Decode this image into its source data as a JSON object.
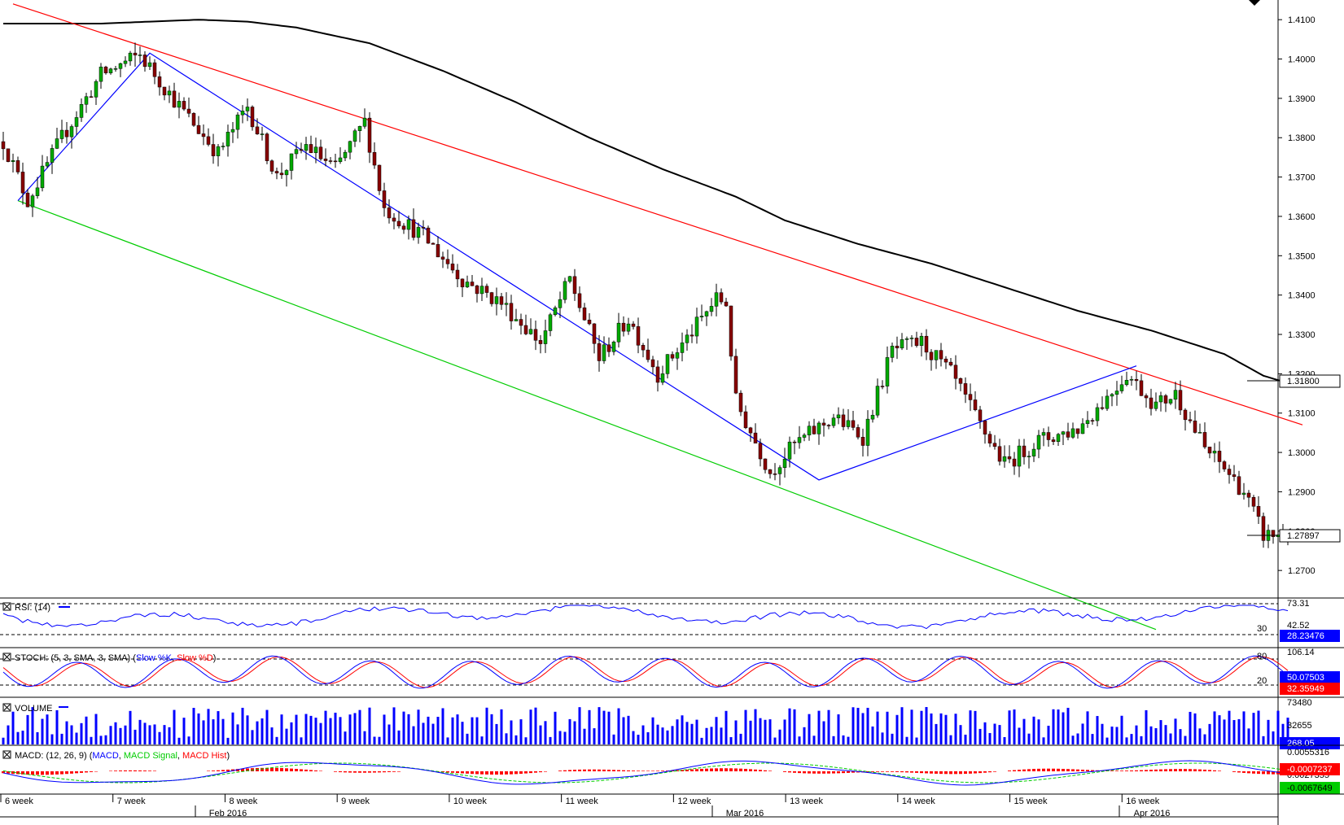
{
  "chart_data": {
    "type": "candlestick",
    "price_axis": {
      "ticks": [
        "1.4100",
        "1.4000",
        "1.3900",
        "1.3800",
        "1.3700",
        "1.3600",
        "1.3500",
        "1.3400",
        "1.3300",
        "1.3200",
        "1.3100",
        "1.3000",
        "1.2900",
        "1.2800",
        "1.2700"
      ],
      "ylim": [
        1.263,
        1.415
      ],
      "current_price_label": "1.27897",
      "current_price": 1.27897,
      "ma_label": "1.31800",
      "ma_value": 1.318
    },
    "time_axis": {
      "week_labels": [
        "6 week",
        "7 week",
        "8 week",
        "9 week",
        "10 week",
        "11 week",
        "12 week",
        "13 week",
        "14 week",
        "15 week",
        "16 week"
      ],
      "month_labels": [
        "Feb 2016",
        "Mar 2016",
        "Apr 2016"
      ]
    },
    "anchors": [
      {
        "i": 0,
        "p": 1.379
      },
      {
        "i": 5,
        "p": 1.364
      },
      {
        "i": 12,
        "p": 1.38
      },
      {
        "i": 20,
        "p": 1.396
      },
      {
        "i": 28,
        "p": 1.401
      },
      {
        "i": 36,
        "p": 1.388
      },
      {
        "i": 44,
        "p": 1.376
      },
      {
        "i": 50,
        "p": 1.388
      },
      {
        "i": 56,
        "p": 1.37
      },
      {
        "i": 62,
        "p": 1.378
      },
      {
        "i": 68,
        "p": 1.372
      },
      {
        "i": 74,
        "p": 1.384
      },
      {
        "i": 78,
        "p": 1.362
      },
      {
        "i": 86,
        "p": 1.355
      },
      {
        "i": 94,
        "p": 1.344
      },
      {
        "i": 102,
        "p": 1.338
      },
      {
        "i": 110,
        "p": 1.328
      },
      {
        "i": 116,
        "p": 1.344
      },
      {
        "i": 122,
        "p": 1.324
      },
      {
        "i": 128,
        "p": 1.334
      },
      {
        "i": 134,
        "p": 1.32
      },
      {
        "i": 140,
        "p": 1.329
      },
      {
        "i": 146,
        "p": 1.339
      },
      {
        "i": 148,
        "p": 1.338
      },
      {
        "i": 150,
        "p": 1.313
      },
      {
        "i": 157,
        "p": 1.295
      },
      {
        "i": 162,
        "p": 1.302
      },
      {
        "i": 170,
        "p": 1.309
      },
      {
        "i": 176,
        "p": 1.304
      },
      {
        "i": 182,
        "p": 1.326
      },
      {
        "i": 188,
        "p": 1.328
      },
      {
        "i": 194,
        "p": 1.32
      },
      {
        "i": 200,
        "p": 1.307
      },
      {
        "i": 205,
        "p": 1.297
      },
      {
        "i": 212,
        "p": 1.303
      },
      {
        "i": 220,
        "p": 1.306
      },
      {
        "i": 226,
        "p": 1.314
      },
      {
        "i": 230,
        "p": 1.32
      },
      {
        "i": 236,
        "p": 1.312
      },
      {
        "i": 240,
        "p": 1.315
      },
      {
        "i": 246,
        "p": 1.301
      },
      {
        "i": 250,
        "p": 1.296
      },
      {
        "i": 254,
        "p": 1.29
      },
      {
        "i": 258,
        "p": 1.279
      },
      {
        "i": 262,
        "p": 1.279
      }
    ],
    "ma_curve": [
      {
        "i": 0,
        "p": 1.409
      },
      {
        "i": 20,
        "p": 1.409
      },
      {
        "i": 40,
        "p": 1.41
      },
      {
        "i": 50,
        "p": 1.4095
      },
      {
        "i": 60,
        "p": 1.408
      },
      {
        "i": 75,
        "p": 1.404
      },
      {
        "i": 90,
        "p": 1.397
      },
      {
        "i": 105,
        "p": 1.389
      },
      {
        "i": 120,
        "p": 1.38
      },
      {
        "i": 135,
        "p": 1.372
      },
      {
        "i": 150,
        "p": 1.365
      },
      {
        "i": 160,
        "p": 1.359
      },
      {
        "i": 175,
        "p": 1.353
      },
      {
        "i": 190,
        "p": 1.348
      },
      {
        "i": 205,
        "p": 1.342
      },
      {
        "i": 220,
        "p": 1.336
      },
      {
        "i": 235,
        "p": 1.331
      },
      {
        "i": 250,
        "p": 1.325
      },
      {
        "i": 258,
        "p": 1.3195
      },
      {
        "i": 262,
        "p": 1.318
      }
    ],
    "trendlines": [
      {
        "name": "red-resistance",
        "color": "#ff0000",
        "points": [
          {
            "i": 2,
            "p": 1.414
          },
          {
            "i": 266,
            "p": 1.307
          }
        ]
      },
      {
        "name": "green-support",
        "color": "#00cc00",
        "points": [
          {
            "i": 3,
            "p": 1.364
          },
          {
            "i": 236,
            "p": 1.255
          }
        ]
      },
      {
        "name": "blue-zigzag",
        "color": "#0000ff",
        "points": [
          {
            "i": 3,
            "p": 1.364
          },
          {
            "i": 30,
            "p": 1.4015
          },
          {
            "i": 167,
            "p": 1.293
          },
          {
            "i": 232,
            "p": 1.322
          }
        ]
      }
    ],
    "candle_count": 264,
    "colors": {
      "up": "#00aa00",
      "down": "#880000",
      "wick": "#000000",
      "ma": "#000000"
    }
  },
  "panels": {
    "rsi": {
      "title": "RSI: (14)",
      "axis": [
        "73.31",
        "42.52"
      ],
      "level": "30",
      "value": "28.23476",
      "color": "#0000ff"
    },
    "stoch": {
      "title": "STOCH: (5, 3, SMA, 3, SMA)",
      "legend_k": "Slow %K",
      "legend_d": "Slow %D",
      "axis": [
        "106.14",
        "80",
        "20"
      ],
      "value_k": "50.07503",
      "value_d": "32.35949",
      "color_k": "#0000ff",
      "color_d": "#ff0000"
    },
    "volume": {
      "title": "VOLUME",
      "axis": [
        "73480",
        "32655"
      ],
      "value": "268.05",
      "color": "#0000ff"
    },
    "macd": {
      "title": "MACD: (12, 26, 9)",
      "legend_macd": "MACD",
      "legend_signal": "MACD Signal",
      "legend_hist": "MACD Hist",
      "axis": [
        "0.0055316",
        "0.0027355"
      ],
      "value_hist": "-0.0007237",
      "value_signal": "-0.0067649",
      "color_macd": "#0000ff",
      "color_signal": "#00cc00",
      "color_hist": "#ff0000"
    }
  }
}
